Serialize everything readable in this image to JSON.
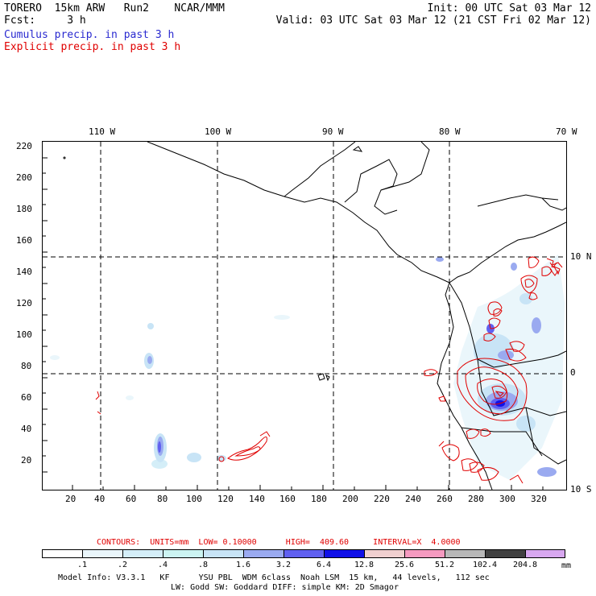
{
  "header": {
    "model_line": "TORERO  15km ARW   Run2    NCAR/MMM",
    "fcst_line": "Fcst:     3 h",
    "init": "Init: 00 UTC Sat 03 Mar 12",
    "valid": "Valid: 03 UTC Sat 03 Mar 12 (21 CST Fri 02 Mar 12)",
    "cumulus": "Cumulus precip. in past 3 h",
    "explicit": "Explicit precip. in past 3 h"
  },
  "map": {
    "top_lon_labels": [
      "110 W",
      "100 W",
      "90 W",
      "80 W",
      "70 W"
    ],
    "right_lat_labels": [
      "10 N",
      "0",
      "10 S"
    ],
    "x_ticks": [
      "20",
      "40",
      "60",
      "80",
      "100",
      "120",
      "140",
      "160",
      "180",
      "200",
      "220",
      "240",
      "260",
      "280",
      "300",
      "320"
    ],
    "y_ticks": [
      "20",
      "40",
      "60",
      "80",
      "100",
      "120",
      "140",
      "160",
      "180",
      "200",
      "220"
    ]
  },
  "legend": {
    "contours_text": "CONTOURS:  UNITS=mm  LOW= 0.10000      HIGH=  409.60     INTERVAL=X  4.0000",
    "unit": "mm",
    "labels": [
      ".1",
      ".2",
      ".4",
      ".8",
      "1.6",
      "3.2",
      "6.4",
      "12.8",
      "25.6",
      "51.2",
      "102.4",
      "204.8"
    ],
    "colors": [
      "#ffffff",
      "#eaf6fb",
      "#d4eef8",
      "#ccf4f2",
      "#c8e4f6",
      "#9aaaf0",
      "#6060f0",
      "#1010e8",
      "#f0d0d0",
      "#f59ac0",
      "#b8b8b8",
      "#404040",
      "#d8a8f0"
    ]
  },
  "footer": {
    "line1": "Model Info: V3.3.1   KF      YSU PBL  WDM 6class  Noah LSM  15 km,   44 levels,   112 sec",
    "line2": "LW: Godd SW: Goddard DIFF: simple KM: 2D Smagor"
  }
}
